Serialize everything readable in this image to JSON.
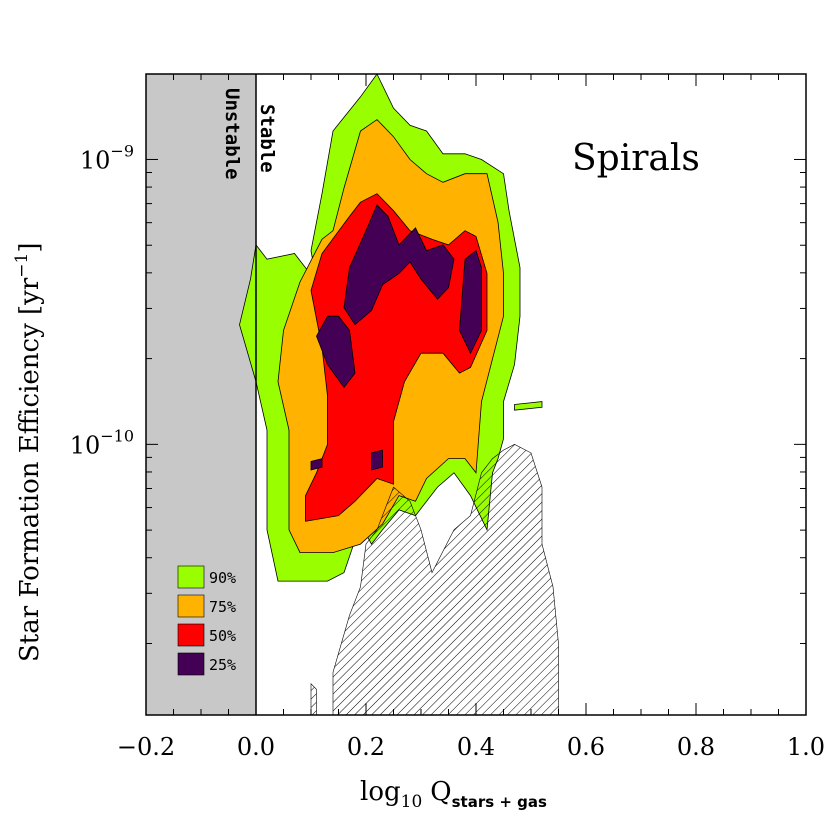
{
  "chart_data": {
    "type": "contour",
    "title": "Spirals",
    "xlabel_base": "log",
    "xlabel_sub1": "10",
    "xlabel_var": "Q",
    "xlabel_sub2": "stars + gas",
    "ylabel_main": "Star Formation Efficiency [yr",
    "ylabel_exp": "−1",
    "ylabel_close": "]",
    "xlim": [
      -0.2,
      1.0
    ],
    "ylim_log10": [
      -10.95,
      -8.7
    ],
    "y_scale": "log",
    "x_ticks": [
      -0.2,
      0.0,
      0.2,
      0.4,
      0.6,
      0.8,
      1.0
    ],
    "x_tick_labels": [
      "−0.2",
      "0.0",
      "0.2",
      "0.4",
      "0.6",
      "0.8",
      "1.0"
    ],
    "x_minor_step": 0.05,
    "y_major_ticks": [
      {
        "log10": -9,
        "base": "10",
        "exp": "−9"
      },
      {
        "log10": -10,
        "base": "10",
        "exp": "−10"
      }
    ],
    "y_minor_values": [
      2e-11,
      3e-11,
      4e-11,
      5e-11,
      6e-11,
      7e-11,
      8e-11,
      9e-11,
      2e-10,
      3e-10,
      4e-10,
      5e-10,
      6e-10,
      7e-10,
      8e-10,
      9e-10,
      2e-09
    ],
    "unstable_region": {
      "x_from": -0.2,
      "x_to": 0.0,
      "label": "Unstable",
      "color": "#c8c8c8"
    },
    "stable_label": "Stable",
    "legend": [
      {
        "label": "90%",
        "color": "#99ff00"
      },
      {
        "label": "75%",
        "color": "#ffb300"
      },
      {
        "label": "50%",
        "color": "#ff0000"
      },
      {
        "label": "25%",
        "color": "#440055"
      }
    ],
    "contours": [
      {
        "level": "90%",
        "color": "#99ff00",
        "polygons": [
          [
            [
              0.11,
              -9.43
            ],
            [
              0.07,
              -9.33
            ],
            [
              0.02,
              -9.35
            ],
            [
              0.0,
              -9.3
            ],
            [
              -0.01,
              -9.42
            ],
            [
              -0.03,
              -9.58
            ],
            [
              0.0,
              -9.78
            ],
            [
              0.02,
              -9.95
            ],
            [
              0.02,
              -10.15
            ],
            [
              0.02,
              -10.3
            ],
            [
              0.04,
              -10.48
            ],
            [
              0.08,
              -10.48
            ],
            [
              0.13,
              -10.48
            ],
            [
              0.16,
              -10.45
            ],
            [
              0.19,
              -10.28
            ],
            [
              0.21,
              -10.35
            ],
            [
              0.23,
              -10.3
            ],
            [
              0.26,
              -10.23
            ],
            [
              0.29,
              -10.25
            ],
            [
              0.33,
              -10.15
            ],
            [
              0.36,
              -10.1
            ],
            [
              0.39,
              -10.18
            ],
            [
              0.42,
              -10.3
            ],
            [
              0.43,
              -10.1
            ],
            [
              0.44,
              -10.05
            ],
            [
              0.45,
              -9.98
            ],
            [
              0.45,
              -9.85
            ],
            [
              0.47,
              -9.72
            ],
            [
              0.48,
              -9.55
            ],
            [
              0.48,
              -9.38
            ],
            [
              0.46,
              -9.18
            ],
            [
              0.45,
              -9.05
            ],
            [
              0.41,
              -9.0
            ],
            [
              0.38,
              -8.98
            ],
            [
              0.34,
              -8.98
            ],
            [
              0.31,
              -8.9
            ],
            [
              0.28,
              -8.88
            ],
            [
              0.25,
              -8.82
            ],
            [
              0.22,
              -8.7
            ],
            [
              0.19,
              -8.78
            ],
            [
              0.14,
              -8.9
            ],
            [
              0.12,
              -9.12
            ],
            [
              0.1,
              -9.32
            ]
          ],
          [
            [
              0.47,
              -9.86
            ],
            [
              0.52,
              -9.85
            ],
            [
              0.52,
              -9.87
            ],
            [
              0.47,
              -9.88
            ]
          ]
        ]
      },
      {
        "level": "75%",
        "color": "#ffb300",
        "polygons": [
          [
            [
              0.12,
              -9.28
            ],
            [
              0.08,
              -9.43
            ],
            [
              0.05,
              -9.6
            ],
            [
              0.04,
              -9.78
            ],
            [
              0.06,
              -9.95
            ],
            [
              0.06,
              -10.12
            ],
            [
              0.06,
              -10.3
            ],
            [
              0.08,
              -10.38
            ],
            [
              0.14,
              -10.38
            ],
            [
              0.19,
              -10.35
            ],
            [
              0.23,
              -10.28
            ],
            [
              0.26,
              -10.18
            ],
            [
              0.29,
              -10.2
            ],
            [
              0.31,
              -10.12
            ],
            [
              0.35,
              -10.05
            ],
            [
              0.38,
              -10.05
            ],
            [
              0.4,
              -10.1
            ],
            [
              0.41,
              -9.85
            ],
            [
              0.43,
              -9.7
            ],
            [
              0.45,
              -9.55
            ],
            [
              0.45,
              -9.4
            ],
            [
              0.44,
              -9.22
            ],
            [
              0.42,
              -9.05
            ],
            [
              0.38,
              -9.05
            ],
            [
              0.34,
              -9.08
            ],
            [
              0.31,
              -9.05
            ],
            [
              0.28,
              -9.0
            ],
            [
              0.25,
              -8.92
            ],
            [
              0.22,
              -8.86
            ],
            [
              0.19,
              -8.9
            ],
            [
              0.16,
              -9.1
            ],
            [
              0.14,
              -9.25
            ]
          ]
        ]
      },
      {
        "level": "50%",
        "color": "#ff0000",
        "polygons": [
          [
            [
              0.17,
              -9.2
            ],
            [
              0.12,
              -9.33
            ],
            [
              0.1,
              -9.46
            ],
            [
              0.12,
              -9.66
            ],
            [
              0.13,
              -9.83
            ],
            [
              0.13,
              -10.0
            ],
            [
              0.11,
              -10.1
            ],
            [
              0.09,
              -10.18
            ],
            [
              0.09,
              -10.27
            ],
            [
              0.15,
              -10.25
            ],
            [
              0.18,
              -10.2
            ],
            [
              0.22,
              -10.12
            ],
            [
              0.25,
              -10.14
            ],
            [
              0.25,
              -10.05
            ],
            [
              0.25,
              -9.92
            ],
            [
              0.27,
              -9.78
            ],
            [
              0.3,
              -9.68
            ],
            [
              0.34,
              -9.68
            ],
            [
              0.37,
              -9.75
            ],
            [
              0.39,
              -9.73
            ],
            [
              0.42,
              -9.6
            ],
            [
              0.42,
              -9.4
            ],
            [
              0.4,
              -9.27
            ],
            [
              0.38,
              -9.25
            ],
            [
              0.35,
              -9.3
            ],
            [
              0.32,
              -9.28
            ],
            [
              0.28,
              -9.25
            ],
            [
              0.25,
              -9.18
            ],
            [
              0.22,
              -9.12
            ],
            [
              0.19,
              -9.15
            ]
          ]
        ]
      },
      {
        "level": "25%",
        "color": "#440055",
        "polygons": [
          [
            [
              0.2,
              -9.25
            ],
            [
              0.17,
              -9.38
            ],
            [
              0.16,
              -9.52
            ],
            [
              0.18,
              -9.58
            ],
            [
              0.21,
              -9.53
            ],
            [
              0.23,
              -9.44
            ],
            [
              0.26,
              -9.4
            ],
            [
              0.28,
              -9.36
            ],
            [
              0.3,
              -9.42
            ],
            [
              0.33,
              -9.49
            ],
            [
              0.35,
              -9.45
            ],
            [
              0.36,
              -9.35
            ],
            [
              0.34,
              -9.3
            ],
            [
              0.31,
              -9.32
            ],
            [
              0.29,
              -9.24
            ],
            [
              0.26,
              -9.3
            ],
            [
              0.24,
              -9.2
            ],
            [
              0.22,
              -9.16
            ]
          ],
          [
            [
              0.13,
              -9.55
            ],
            [
              0.11,
              -9.62
            ],
            [
              0.13,
              -9.72
            ],
            [
              0.16,
              -9.8
            ],
            [
              0.18,
              -9.75
            ],
            [
              0.17,
              -9.6
            ],
            [
              0.15,
              -9.55
            ]
          ],
          [
            [
              0.38,
              -9.35
            ],
            [
              0.37,
              -9.6
            ],
            [
              0.39,
              -9.68
            ],
            [
              0.41,
              -9.6
            ],
            [
              0.41,
              -9.38
            ],
            [
              0.4,
              -9.32
            ]
          ],
          [
            [
              0.1,
              -10.06
            ],
            [
              0.1,
              -10.09
            ],
            [
              0.12,
              -10.08
            ],
            [
              0.12,
              -10.05
            ]
          ],
          [
            [
              0.21,
              -10.03
            ],
            [
              0.21,
              -10.09
            ],
            [
              0.23,
              -10.08
            ],
            [
              0.23,
              -10.02
            ]
          ]
        ]
      }
    ],
    "hatched_region": {
      "description": "comparison distribution",
      "polygons": [
        [
          [
            0.14,
            -10.95
          ],
          [
            0.14,
            -10.8
          ],
          [
            0.17,
            -10.6
          ],
          [
            0.19,
            -10.5
          ],
          [
            0.2,
            -10.35
          ],
          [
            0.22,
            -10.3
          ],
          [
            0.25,
            -10.15
          ],
          [
            0.28,
            -10.2
          ],
          [
            0.3,
            -10.3
          ],
          [
            0.32,
            -10.45
          ],
          [
            0.36,
            -10.3
          ],
          [
            0.39,
            -10.25
          ],
          [
            0.41,
            -10.1
          ],
          [
            0.43,
            -10.05
          ],
          [
            0.45,
            -10.02
          ],
          [
            0.47,
            -10.0
          ],
          [
            0.5,
            -10.03
          ],
          [
            0.52,
            -10.15
          ],
          [
            0.52,
            -10.35
          ],
          [
            0.54,
            -10.5
          ],
          [
            0.55,
            -10.7
          ],
          [
            0.55,
            -10.95
          ]
        ],
        [
          [
            0.1,
            -10.95
          ],
          [
            0.1,
            -10.84
          ],
          [
            0.11,
            -10.86
          ],
          [
            0.11,
            -10.95
          ]
        ]
      ]
    }
  }
}
